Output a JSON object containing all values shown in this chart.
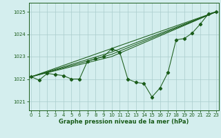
{
  "title": "Graphe pression niveau de la mer (hPa)",
  "bg_color": "#d4eeee",
  "grid_color": "#aacccc",
  "line_color": "#1a5c1a",
  "ylim": [
    1020.6,
    1025.4
  ],
  "xlim": [
    -0.3,
    23.3
  ],
  "yticks": [
    1021,
    1022,
    1023,
    1024,
    1025
  ],
  "xticks": [
    0,
    1,
    2,
    3,
    4,
    5,
    6,
    7,
    8,
    9,
    10,
    11,
    12,
    13,
    14,
    15,
    16,
    17,
    18,
    19,
    20,
    21,
    22,
    23
  ],
  "series_main": [
    [
      0,
      1022.1
    ],
    [
      1,
      1021.95
    ],
    [
      2,
      1022.25
    ],
    [
      3,
      1022.2
    ],
    [
      4,
      1022.15
    ],
    [
      5,
      1022.0
    ],
    [
      6,
      1022.0
    ],
    [
      7,
      1022.8
    ],
    [
      8,
      1022.9
    ],
    [
      9,
      1023.0
    ],
    [
      10,
      1023.35
    ],
    [
      11,
      1023.2
    ],
    [
      12,
      1022.0
    ],
    [
      13,
      1021.85
    ],
    [
      14,
      1021.8
    ],
    [
      15,
      1021.2
    ],
    [
      16,
      1021.6
    ],
    [
      17,
      1022.3
    ],
    [
      18,
      1023.75
    ],
    [
      19,
      1023.8
    ],
    [
      20,
      1024.05
    ],
    [
      21,
      1024.45
    ],
    [
      22,
      1024.9
    ],
    [
      23,
      1025.0
    ]
  ],
  "series_trend1": [
    [
      0,
      1022.1
    ],
    [
      23,
      1025.0
    ]
  ],
  "series_trend2": [
    [
      0,
      1022.1
    ],
    [
      10,
      1023.0
    ],
    [
      23,
      1025.0
    ]
  ],
  "series_trend3": [
    [
      0,
      1022.1
    ],
    [
      10,
      1023.1
    ],
    [
      23,
      1025.0
    ]
  ],
  "series_trend4": [
    [
      0,
      1022.1
    ],
    [
      10,
      1023.2
    ],
    [
      23,
      1025.0
    ]
  ]
}
